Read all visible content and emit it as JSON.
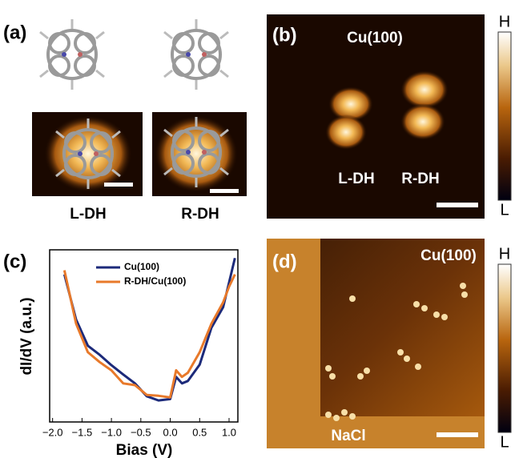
{
  "panels": {
    "a": {
      "label": "(a)",
      "captions": [
        "L-DH",
        "R-DH"
      ]
    },
    "b": {
      "label": "(b)",
      "substrate": "Cu(100)",
      "captions": [
        "L-DH",
        "R-DH"
      ],
      "scale_high": "H",
      "scale_low": "L"
    },
    "d": {
      "label": "(d)",
      "substrate": "Cu(100)",
      "region": "NaCl",
      "scale_high": "H",
      "scale_low": "L"
    }
  },
  "chart_data": {
    "type": "line",
    "panel_label": "(c)",
    "x_label": "Bias (V)",
    "y_label": "dI/dV (a.u.)",
    "x": [
      -1.8,
      -1.6,
      -1.4,
      -1.2,
      -1.0,
      -0.8,
      -0.6,
      -0.4,
      -0.2,
      0,
      0.1,
      0.2,
      0.3,
      0.5,
      0.7,
      0.9,
      1.0,
      1.1
    ],
    "series": [
      {
        "name": "Cu(100)",
        "color": "#1c2a7a",
        "values": [
          0.857,
          0.595,
          0.443,
          0.39,
          0.33,
          0.276,
          0.224,
          0.15,
          0.125,
          0.133,
          0.262,
          0.224,
          0.238,
          0.333,
          0.548,
          0.667,
          0.81,
          0.952
        ]
      },
      {
        "name": "R-DH/Cu(100)",
        "color": "#e8792a",
        "values": [
          0.881,
          0.571,
          0.405,
          0.348,
          0.3,
          0.224,
          0.214,
          0.157,
          0.152,
          0.143,
          0.3,
          0.262,
          0.286,
          0.405,
          0.571,
          0.695,
          0.786,
          0.857
        ]
      }
    ],
    "xlim": [
      -2.05,
      1.15
    ],
    "ylim": [
      0,
      1
    ],
    "xticks": [
      {
        "value": -2,
        "label": "−2.0"
      },
      {
        "value": -1.5,
        "label": "−1.5"
      },
      {
        "value": -1,
        "label": "−1.0"
      },
      {
        "value": -0.5,
        "label": "−0.5"
      },
      {
        "value": 0,
        "label": "0.0"
      },
      0.5,
      {
        "value": 1,
        "label": "1.0"
      }
    ],
    "legend": "upper center"
  }
}
